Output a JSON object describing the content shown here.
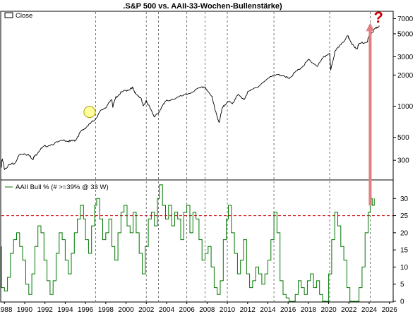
{
  "chart_data": [
    {
      "type": "line",
      "title": ".S&P 500 vs. AAII-33-Wochen-Bullenstärke)",
      "scale": "log",
      "legend": {
        "label": "Close",
        "placement": "top-left"
      },
      "ylim": [
        200,
        8000
      ],
      "y_ticks": [
        300,
        500,
        1000,
        2000,
        3000,
        5000,
        7000
      ],
      "color": "#000000",
      "series": [
        {
          "name": "Close",
          "points": [
            [
              1987.0,
              240
            ],
            [
              1987.3,
              260
            ],
            [
              1987.8,
              300
            ],
            [
              1988.0,
              250
            ],
            [
              1988.5,
              270
            ],
            [
              1989.0,
              280
            ],
            [
              1989.5,
              340
            ],
            [
              1990.0,
              350
            ],
            [
              1990.5,
              330
            ],
            [
              1990.8,
              310
            ],
            [
              1991.0,
              330
            ],
            [
              1991.5,
              380
            ],
            [
              1992.0,
              410
            ],
            [
              1993.0,
              440
            ],
            [
              1994.0,
              470
            ],
            [
              1994.5,
              455
            ],
            [
              1995.0,
              470
            ],
            [
              1995.5,
              560
            ],
            [
              1996.0,
              620
            ],
            [
              1996.5,
              680
            ],
            [
              1997.0,
              760
            ],
            [
              1997.5,
              900
            ],
            [
              1998.0,
              980
            ],
            [
              1998.6,
              1150
            ],
            [
              1998.7,
              990
            ],
            [
              1999.0,
              1220
            ],
            [
              1999.5,
              1350
            ],
            [
              2000.0,
              1420
            ],
            [
              2000.5,
              1470
            ],
            [
              2000.7,
              1500
            ],
            [
              2001.0,
              1280
            ],
            [
              2001.5,
              1200
            ],
            [
              2001.7,
              990
            ],
            [
              2002.0,
              1140
            ],
            [
              2002.5,
              900
            ],
            [
              2002.8,
              800
            ],
            [
              2003.2,
              850
            ],
            [
              2003.5,
              980
            ],
            [
              2004.0,
              1130
            ],
            [
              2005.0,
              1200
            ],
            [
              2006.0,
              1300
            ],
            [
              2007.0,
              1450
            ],
            [
              2007.8,
              1550
            ],
            [
              2008.0,
              1400
            ],
            [
              2008.5,
              1250
            ],
            [
              2008.8,
              900
            ],
            [
              2009.2,
              700
            ],
            [
              2009.5,
              950
            ],
            [
              2010.0,
              1120
            ],
            [
              2010.5,
              1050
            ],
            [
              2011.0,
              1300
            ],
            [
              2011.6,
              1150
            ],
            [
              2012.0,
              1350
            ],
            [
              2013.0,
              1550
            ],
            [
              2014.0,
              1850
            ],
            [
              2015.0,
              2060
            ],
            [
              2015.7,
              1900
            ],
            [
              2016.1,
              1880
            ],
            [
              2016.8,
              2150
            ],
            [
              2017.5,
              2450
            ],
            [
              2018.0,
              2800
            ],
            [
              2018.9,
              2450
            ],
            [
              2019.5,
              2950
            ],
            [
              2020.1,
              3300
            ],
            [
              2020.2,
              2250
            ],
            [
              2020.6,
              3300
            ],
            [
              2021.0,
              3800
            ],
            [
              2021.9,
              4750
            ],
            [
              2022.0,
              4600
            ],
            [
              2022.5,
              3700
            ],
            [
              2022.8,
              3600
            ],
            [
              2023.0,
              4000
            ],
            [
              2023.8,
              4200
            ],
            [
              2024.0,
              4800
            ],
            [
              2024.4,
              5300
            ],
            [
              2024.7,
              5700
            ],
            [
              2025.0,
              6000
            ]
          ]
        }
      ],
      "annotations": [
        {
          "text": "?",
          "color": "#cc0000"
        },
        {
          "type": "arrow",
          "color": "#e08080",
          "from": [
            2024.1,
            28
          ],
          "to": [
            2024.1,
            6200
          ]
        },
        {
          "type": "circle-marker",
          "color": "#ffffa0",
          "at": [
            1996.4,
            880
          ]
        }
      ]
    },
    {
      "type": "line",
      "scale": "linear",
      "legend": {
        "label": "AAII Bull % (# >=39% @ 33 W)",
        "placement": "top-left"
      },
      "ylim": [
        0,
        35
      ],
      "y_ticks": [
        0,
        5,
        10,
        15,
        20,
        25,
        30
      ],
      "reference_line": {
        "y": 25,
        "color": "#cc0000",
        "style": "dashed"
      },
      "color": "#007700",
      "x_ticks": [
        "1988",
        "1990",
        "1992",
        "1994",
        "1996",
        "1998",
        "2000",
        "2002",
        "2004",
        "2006",
        "2008",
        "2010",
        "2012",
        "2014",
        "2016",
        "2018",
        "2020",
        "2022",
        "2024",
        "2026"
      ],
      "x_range": [
        1987.7,
        2026.3
      ],
      "vertical_dashed_lines": [
        1997.0,
        2002.0,
        2003.2,
        2006.0,
        2007.8,
        2010.0,
        2014.6,
        2020.1,
        2024.1
      ],
      "series": [
        {
          "name": "AAII Bull % (# >=39% @ 33 W)",
          "points": [
            [
              1987.0,
              16
            ],
            [
              1987.3,
              10
            ],
            [
              1987.7,
              4
            ],
            [
              1988.0,
              3
            ],
            [
              1988.3,
              7
            ],
            [
              1988.6,
              14
            ],
            [
              1988.9,
              18
            ],
            [
              1989.2,
              20
            ],
            [
              1989.5,
              16
            ],
            [
              1989.8,
              12
            ],
            [
              1990.1,
              5
            ],
            [
              1990.4,
              2
            ],
            [
              1990.7,
              8
            ],
            [
              1991.0,
              16
            ],
            [
              1991.3,
              22
            ],
            [
              1991.6,
              20
            ],
            [
              1991.9,
              12
            ],
            [
              1992.2,
              6
            ],
            [
              1992.5,
              2
            ],
            [
              1992.8,
              6
            ],
            [
              1993.1,
              14
            ],
            [
              1993.4,
              20
            ],
            [
              1993.7,
              18
            ],
            [
              1994.0,
              12
            ],
            [
              1994.3,
              8
            ],
            [
              1994.6,
              14
            ],
            [
              1994.9,
              20
            ],
            [
              1995.2,
              24
            ],
            [
              1995.5,
              28
            ],
            [
              1995.8,
              24
            ],
            [
              1996.0,
              18
            ],
            [
              1996.3,
              14
            ],
            [
              1996.6,
              22
            ],
            [
              1996.9,
              28
            ],
            [
              1997.1,
              30
            ],
            [
              1997.4,
              24
            ],
            [
              1997.7,
              18
            ],
            [
              1998.0,
              20
            ],
            [
              1998.3,
              24
            ],
            [
              1998.6,
              16
            ],
            [
              1998.9,
              12
            ],
            [
              1999.2,
              20
            ],
            [
              1999.5,
              26
            ],
            [
              1999.8,
              28
            ],
            [
              2000.1,
              22
            ],
            [
              2000.4,
              20
            ],
            [
              2000.7,
              26
            ],
            [
              2001.0,
              20
            ],
            [
              2001.3,
              14
            ],
            [
              2001.6,
              8
            ],
            [
              2001.9,
              16
            ],
            [
              2002.2,
              24
            ],
            [
              2002.5,
              26
            ],
            [
              2002.8,
              22
            ],
            [
              2003.1,
              30
            ],
            [
              2003.3,
              34
            ],
            [
              2003.6,
              28
            ],
            [
              2003.9,
              24
            ],
            [
              2004.2,
              28
            ],
            [
              2004.5,
              22
            ],
            [
              2004.8,
              26
            ],
            [
              2005.1,
              24
            ],
            [
              2005.4,
              18
            ],
            [
              2005.7,
              26
            ],
            [
              2006.0,
              28
            ],
            [
              2006.3,
              20
            ],
            [
              2006.6,
              26
            ],
            [
              2006.9,
              24
            ],
            [
              2007.2,
              18
            ],
            [
              2007.5,
              12
            ],
            [
              2007.8,
              14
            ],
            [
              2008.1,
              16
            ],
            [
              2008.4,
              10
            ],
            [
              2008.7,
              4
            ],
            [
              2009.0,
              2
            ],
            [
              2009.3,
              6
            ],
            [
              2009.6,
              18
            ],
            [
              2009.9,
              24
            ],
            [
              2010.1,
              28
            ],
            [
              2010.4,
              20
            ],
            [
              2010.7,
              14
            ],
            [
              2011.0,
              8
            ],
            [
              2011.3,
              12
            ],
            [
              2011.6,
              18
            ],
            [
              2011.9,
              8
            ],
            [
              2012.2,
              4
            ],
            [
              2012.5,
              6
            ],
            [
              2012.8,
              10
            ],
            [
              2013.1,
              8
            ],
            [
              2013.4,
              5
            ],
            [
              2013.7,
              8
            ],
            [
              2014.0,
              12
            ],
            [
              2014.3,
              18
            ],
            [
              2014.6,
              26
            ],
            [
              2014.9,
              20
            ],
            [
              2015.2,
              6
            ],
            [
              2015.5,
              2
            ],
            [
              2015.8,
              1
            ],
            [
              2016.1,
              0
            ],
            [
              2016.4,
              0
            ],
            [
              2016.7,
              2
            ],
            [
              2017.0,
              6
            ],
            [
              2017.3,
              4
            ],
            [
              2017.6,
              2
            ],
            [
              2017.9,
              6
            ],
            [
              2018.2,
              8
            ],
            [
              2018.5,
              4
            ],
            [
              2018.8,
              6
            ],
            [
              2019.1,
              2
            ],
            [
              2019.4,
              0
            ],
            [
              2019.7,
              0
            ],
            [
              2020.0,
              8
            ],
            [
              2020.3,
              18
            ],
            [
              2020.6,
              26
            ],
            [
              2020.9,
              22
            ],
            [
              2021.2,
              16
            ],
            [
              2021.5,
              12
            ],
            [
              2021.8,
              4
            ],
            [
              2022.1,
              0
            ],
            [
              2022.4,
              0
            ],
            [
              2022.7,
              0
            ],
            [
              2023.0,
              4
            ],
            [
              2023.3,
              10
            ],
            [
              2023.6,
              20
            ],
            [
              2023.9,
              26
            ],
            [
              2024.1,
              30
            ],
            [
              2024.3,
              28
            ],
            [
              2024.5,
              30
            ]
          ]
        }
      ]
    }
  ]
}
